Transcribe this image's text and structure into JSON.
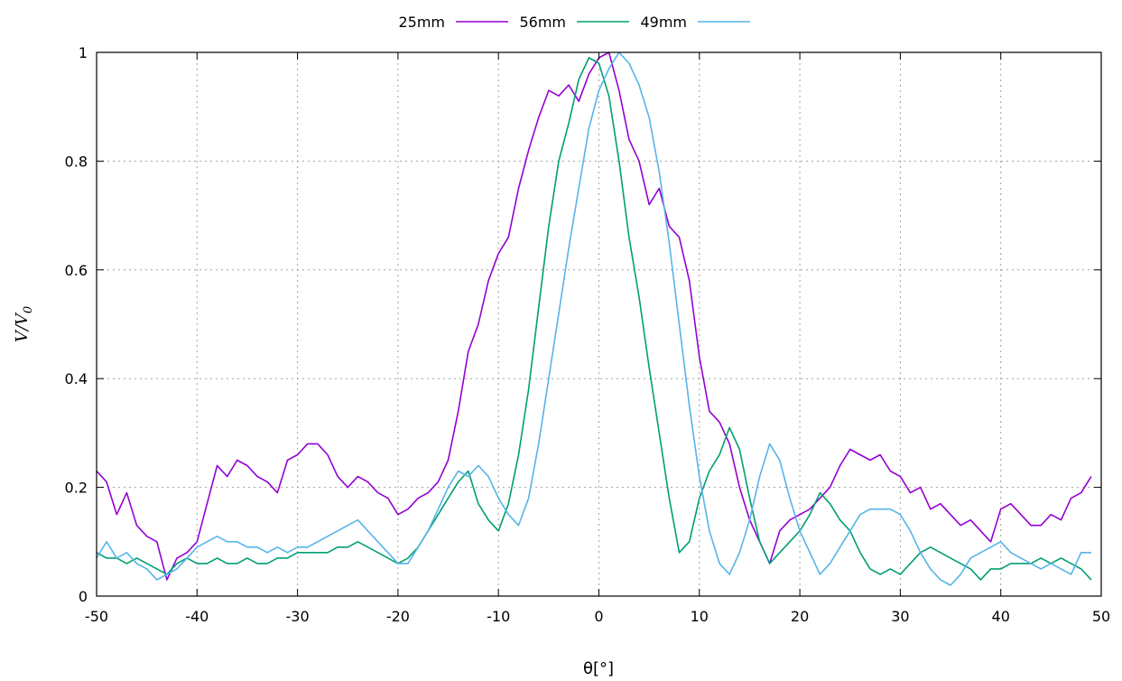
{
  "chart_data": {
    "type": "line",
    "title": "",
    "xlabel": "θ[°]",
    "ylabel": "V/V0",
    "ylabel_main": "V/V",
    "ylabel_sub": "0",
    "xlim": [
      -50,
      50
    ],
    "ylim": [
      0,
      1
    ],
    "x_ticks": [
      -50,
      -40,
      -30,
      -20,
      -10,
      0,
      10,
      20,
      30,
      40,
      50
    ],
    "y_ticks": [
      0,
      0.2,
      0.4,
      0.6,
      0.8,
      1
    ],
    "y_tick_labels": [
      "0",
      "0.2",
      "0.4",
      "0.6",
      "0.8",
      "1"
    ],
    "grid": true,
    "legend_position": "top-center",
    "series": [
      {
        "name": "25mm",
        "color": "#9400d3",
        "x": [
          -50,
          -49,
          -48,
          -47,
          -46,
          -45,
          -44,
          -43,
          -42,
          -41,
          -40,
          -39,
          -38,
          -37,
          -36,
          -35,
          -34,
          -33,
          -32,
          -31,
          -30,
          -29,
          -28,
          -27,
          -26,
          -25,
          -24,
          -23,
          -22,
          -21,
          -20,
          -19,
          -18,
          -17,
          -16,
          -15,
          -14,
          -13,
          -12,
          -11,
          -10,
          -9,
          -8,
          -7,
          -6,
          -5,
          -4,
          -3,
          -2,
          -1,
          0,
          1,
          2,
          3,
          4,
          5,
          6,
          7,
          8,
          9,
          10,
          11,
          12,
          13,
          14,
          15,
          16,
          17,
          18,
          19,
          20,
          21,
          22,
          23,
          24,
          25,
          26,
          27,
          28,
          29,
          30,
          31,
          32,
          33,
          34,
          35,
          36,
          37,
          38,
          39,
          40,
          41,
          42,
          43,
          44,
          45,
          46,
          47,
          48,
          49
        ],
        "y": [
          0.23,
          0.21,
          0.15,
          0.19,
          0.13,
          0.11,
          0.1,
          0.03,
          0.07,
          0.08,
          0.1,
          0.17,
          0.24,
          0.22,
          0.25,
          0.24,
          0.22,
          0.21,
          0.19,
          0.25,
          0.26,
          0.28,
          0.28,
          0.26,
          0.22,
          0.2,
          0.22,
          0.21,
          0.19,
          0.18,
          0.15,
          0.16,
          0.18,
          0.19,
          0.21,
          0.25,
          0.34,
          0.45,
          0.5,
          0.58,
          0.63,
          0.66,
          0.75,
          0.82,
          0.88,
          0.93,
          0.92,
          0.94,
          0.91,
          0.96,
          0.99,
          1.0,
          0.93,
          0.84,
          0.8,
          0.72,
          0.75,
          0.68,
          0.66,
          0.58,
          0.44,
          0.34,
          0.32,
          0.28,
          0.2,
          0.14,
          0.1,
          0.06,
          0.12,
          0.14,
          0.15,
          0.16,
          0.18,
          0.2,
          0.24,
          0.27,
          0.26,
          0.25,
          0.26,
          0.23,
          0.22,
          0.19,
          0.2,
          0.16,
          0.17,
          0.15,
          0.13,
          0.14,
          0.12,
          0.1,
          0.16,
          0.17,
          0.15,
          0.13,
          0.13,
          0.15,
          0.14,
          0.18,
          0.19,
          0.22
        ]
      },
      {
        "name": "56mm",
        "color": "#009e73",
        "x": [
          -50,
          -49,
          -48,
          -47,
          -46,
          -45,
          -44,
          -43,
          -42,
          -41,
          -40,
          -39,
          -38,
          -37,
          -36,
          -35,
          -34,
          -33,
          -32,
          -31,
          -30,
          -29,
          -28,
          -27,
          -26,
          -25,
          -24,
          -23,
          -22,
          -21,
          -20,
          -19,
          -18,
          -17,
          -16,
          -15,
          -14,
          -13,
          -12,
          -11,
          -10,
          -9,
          -8,
          -7,
          -6,
          -5,
          -4,
          -3,
          -2,
          -1,
          0,
          1,
          2,
          3,
          4,
          5,
          6,
          7,
          8,
          9,
          10,
          11,
          12,
          13,
          14,
          15,
          16,
          17,
          18,
          19,
          20,
          21,
          22,
          23,
          24,
          25,
          26,
          27,
          28,
          29,
          30,
          31,
          32,
          33,
          34,
          35,
          36,
          37,
          38,
          39,
          40,
          41,
          42,
          43,
          44,
          45,
          46,
          47,
          48,
          49
        ],
        "y": [
          0.08,
          0.07,
          0.07,
          0.06,
          0.07,
          0.06,
          0.05,
          0.04,
          0.06,
          0.07,
          0.06,
          0.06,
          0.07,
          0.06,
          0.06,
          0.07,
          0.06,
          0.06,
          0.07,
          0.07,
          0.08,
          0.08,
          0.08,
          0.08,
          0.09,
          0.09,
          0.1,
          0.09,
          0.08,
          0.07,
          0.06,
          0.07,
          0.09,
          0.12,
          0.15,
          0.18,
          0.21,
          0.23,
          0.17,
          0.14,
          0.12,
          0.17,
          0.26,
          0.38,
          0.53,
          0.68,
          0.8,
          0.87,
          0.95,
          0.99,
          0.98,
          0.92,
          0.8,
          0.66,
          0.55,
          0.42,
          0.3,
          0.18,
          0.08,
          0.1,
          0.18,
          0.23,
          0.26,
          0.31,
          0.27,
          0.18,
          0.1,
          0.06,
          0.08,
          0.1,
          0.12,
          0.15,
          0.19,
          0.17,
          0.14,
          0.12,
          0.08,
          0.05,
          0.04,
          0.05,
          0.04,
          0.06,
          0.08,
          0.09,
          0.08,
          0.07,
          0.06,
          0.05,
          0.03,
          0.05,
          0.05,
          0.06,
          0.06,
          0.06,
          0.07,
          0.06,
          0.07,
          0.06,
          0.05,
          0.03
        ]
      },
      {
        "name": "49mm",
        "color": "#56b4e9",
        "x": [
          -50,
          -49,
          -48,
          -47,
          -46,
          -45,
          -44,
          -43,
          -42,
          -41,
          -40,
          -39,
          -38,
          -37,
          -36,
          -35,
          -34,
          -33,
          -32,
          -31,
          -30,
          -29,
          -28,
          -27,
          -26,
          -25,
          -24,
          -23,
          -22,
          -21,
          -20,
          -19,
          -18,
          -17,
          -16,
          -15,
          -14,
          -13,
          -12,
          -11,
          -10,
          -9,
          -8,
          -7,
          -6,
          -5,
          -4,
          -3,
          -2,
          -1,
          0,
          1,
          2,
          3,
          4,
          5,
          6,
          7,
          8,
          9,
          10,
          11,
          12,
          13,
          14,
          15,
          16,
          17,
          18,
          19,
          20,
          21,
          22,
          23,
          24,
          25,
          26,
          27,
          28,
          29,
          30,
          31,
          32,
          33,
          34,
          35,
          36,
          37,
          38,
          39,
          40,
          41,
          42,
          43,
          44,
          45,
          46,
          47,
          48,
          49
        ],
        "y": [
          0.07,
          0.1,
          0.07,
          0.08,
          0.06,
          0.05,
          0.03,
          0.04,
          0.05,
          0.07,
          0.09,
          0.1,
          0.11,
          0.1,
          0.1,
          0.09,
          0.09,
          0.08,
          0.09,
          0.08,
          0.09,
          0.09,
          0.1,
          0.11,
          0.12,
          0.13,
          0.14,
          0.12,
          0.1,
          0.08,
          0.06,
          0.06,
          0.09,
          0.12,
          0.16,
          0.2,
          0.23,
          0.22,
          0.24,
          0.22,
          0.18,
          0.15,
          0.13,
          0.18,
          0.28,
          0.4,
          0.52,
          0.64,
          0.75,
          0.86,
          0.93,
          0.97,
          1.0,
          0.98,
          0.94,
          0.88,
          0.78,
          0.65,
          0.5,
          0.35,
          0.22,
          0.12,
          0.06,
          0.04,
          0.08,
          0.14,
          0.22,
          0.28,
          0.25,
          0.18,
          0.12,
          0.08,
          0.04,
          0.06,
          0.09,
          0.12,
          0.15,
          0.16,
          0.16,
          0.16,
          0.15,
          0.12,
          0.08,
          0.05,
          0.03,
          0.02,
          0.04,
          0.07,
          0.08,
          0.09,
          0.1,
          0.08,
          0.07,
          0.06,
          0.05,
          0.06,
          0.05,
          0.04,
          0.08,
          0.08
        ]
      }
    ]
  }
}
